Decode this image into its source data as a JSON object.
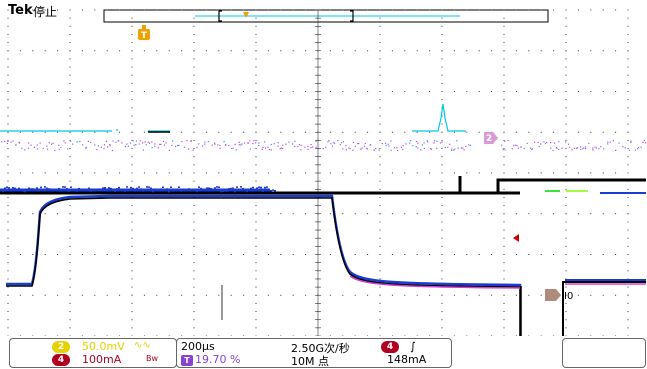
{
  "header": {
    "brand": "Tek",
    "status": "停止"
  },
  "markers": {
    "trigger_top": "T",
    "ch2_marker": "2",
    "ref_label": "I0"
  },
  "channels": [
    {
      "badge": "2",
      "scale": "50.0mV",
      "coupling": "∿∿",
      "color": "#e6d200"
    },
    {
      "badge": "4",
      "scale": "100mA",
      "coupling": "Bw",
      "color": "#b00020"
    }
  ],
  "timebase": {
    "scale": "200μs",
    "trigger_position": "19.70 %",
    "trigger_badge": "T"
  },
  "acquisition": {
    "sample_rate": "2.50G次/秒",
    "record_length": "10M 点"
  },
  "trigger": {
    "channel": "4",
    "slope": "∫",
    "level": "148mA"
  },
  "colors": {
    "ch1": "#1a3cd0",
    "ch2": "#00c8e0",
    "ch3": "#d040d0",
    "ch4": "#000000",
    "trigger": "#f0a000",
    "grid": "#333333"
  }
}
